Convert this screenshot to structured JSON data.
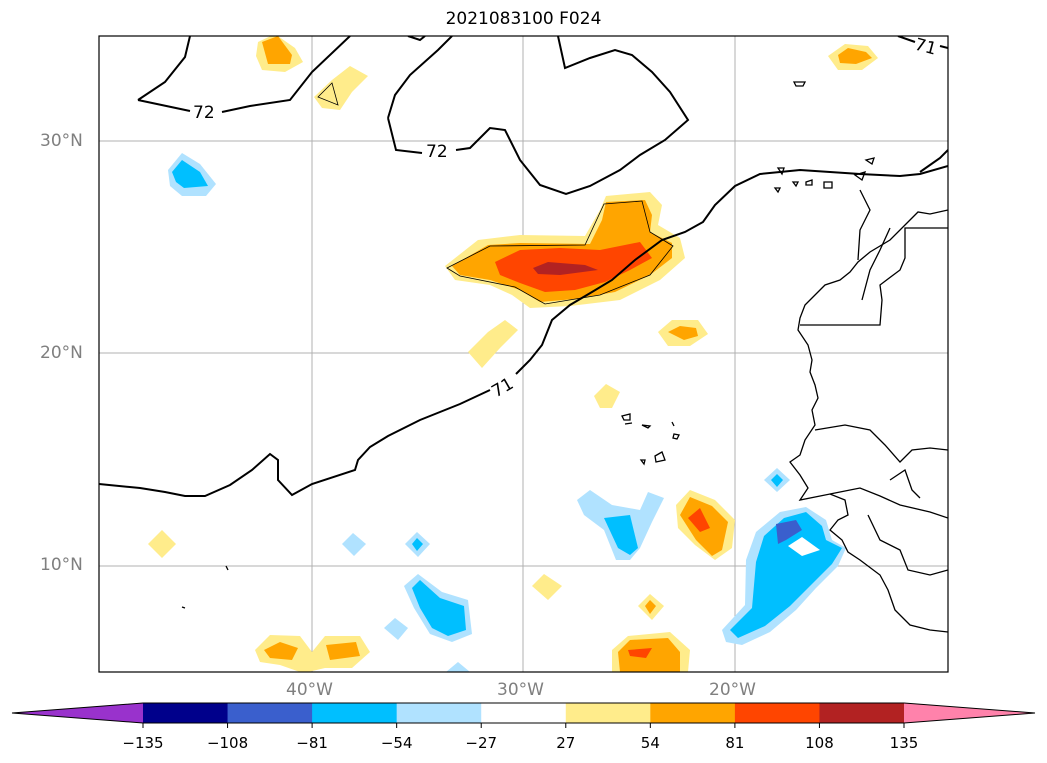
{
  "title": "2021083100 F024",
  "lat_labels": [
    "30°N",
    "20°N",
    "10°N"
  ],
  "lon_labels": [
    "40°W",
    "30°W",
    "20°W"
  ],
  "contour_labels": [
    "72",
    "72",
    "71",
    "71"
  ],
  "colorbar": {
    "tick_labels": [
      "−135",
      "−108",
      "−81",
      "−54",
      "−27",
      "27",
      "54",
      "81",
      "108",
      "135"
    ],
    "colors": [
      "#9932cc",
      "#00008b",
      "#3a5fcd",
      "#00bfff",
      "#b0e2ff",
      "#ffffff",
      "#ffec8b",
      "#ffa500",
      "#ff4500",
      "#b22222",
      "#ff82ab"
    ]
  },
  "fill_colors": {
    "neg27": "#b0e2ff",
    "neg54": "#00bfff",
    "neg81": "#3a5fcd",
    "pos27": "#ffec8b",
    "pos54": "#ffa500",
    "pos81": "#ff4500",
    "pos108": "#b22222"
  }
}
